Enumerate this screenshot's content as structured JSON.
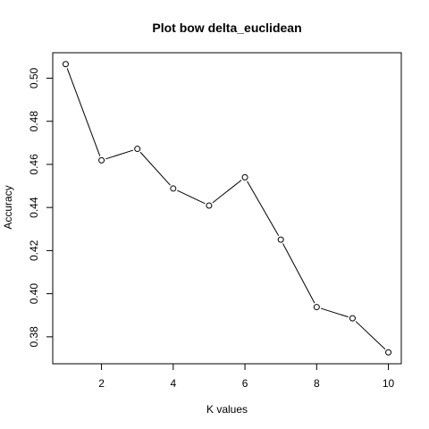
{
  "chart_data": {
    "type": "line",
    "title": "Plot bow delta_euclidean",
    "xlabel": "K values",
    "ylabel": "Accuracy",
    "x": [
      1,
      2,
      3,
      4,
      5,
      6,
      7,
      8,
      9,
      10
    ],
    "series": [
      {
        "values": [
          0.5065,
          0.4619,
          0.4672,
          0.4488,
          0.4409,
          0.454,
          0.4251,
          0.3938,
          0.3886,
          0.3728
        ]
      }
    ],
    "xlim": [
      0.64,
      10.36
    ],
    "ylim": [
      0.3675,
      0.5118
    ],
    "x_ticks": [
      2,
      4,
      6,
      8,
      10
    ],
    "y_ticks": [
      0.38,
      0.4,
      0.42,
      0.44,
      0.46,
      0.48,
      0.5
    ],
    "y_tick_labels": [
      "0.38",
      "0.40",
      "0.42",
      "0.44",
      "0.46",
      "0.48",
      "0.50"
    ],
    "grid": false,
    "markers": "open-circle",
    "colors": {
      "line": "#000000",
      "marker_fill": "#ffffff",
      "marker_stroke": "#000000",
      "axis": "#000000"
    }
  }
}
